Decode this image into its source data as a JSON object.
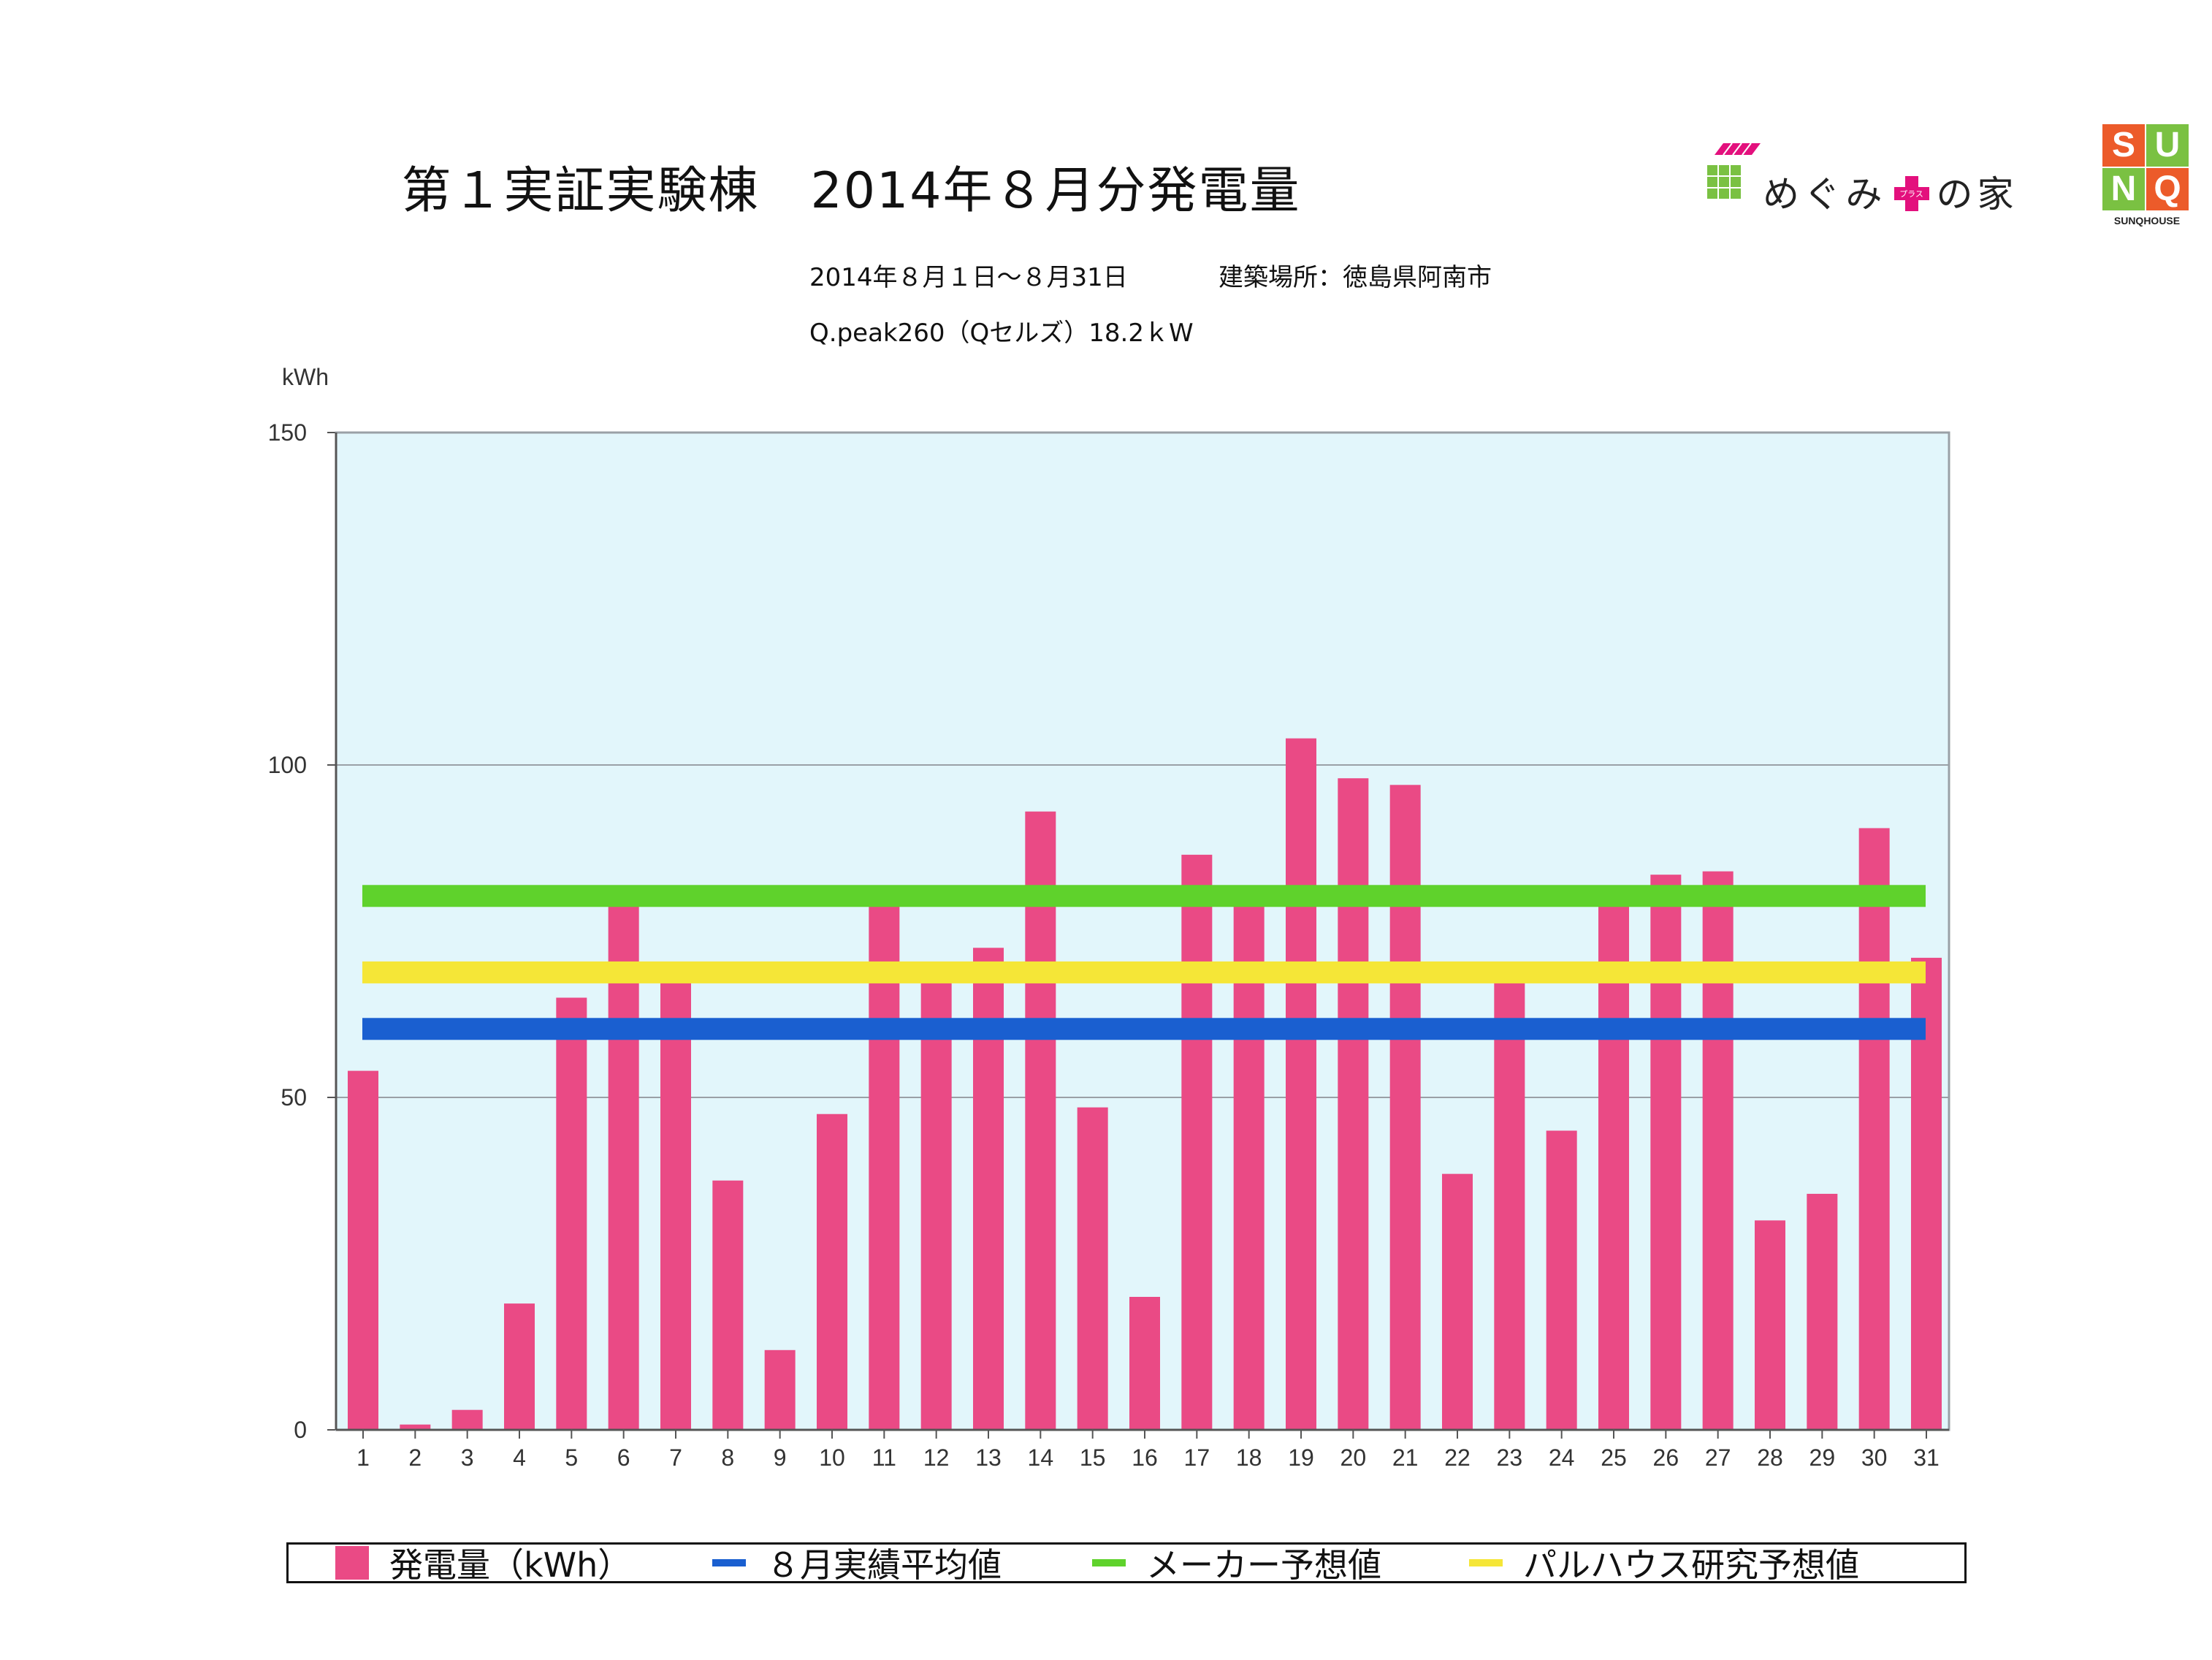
{
  "title": "第１実証実験棟　2014年８月分発電量",
  "period": "2014年８月１日〜８月31日",
  "location": "建築場所：徳島県阿南市",
  "system": "Q.peak260（Qセルズ）18.2ｋW",
  "logos": {
    "megumi": "めぐみ",
    "megumi_plus": "プラス",
    "megumi_suffix": "の家",
    "sunq_letters": [
      "S",
      "U",
      "N",
      "Q"
    ],
    "sunq_caption": "SUNQHOUSE"
  },
  "colors": {
    "bar": "#ea4a85",
    "plot_bg": "#e2f6fb",
    "avg": "#1a5fd0",
    "maker": "#5fd22c",
    "palhouse": "#f5e637"
  },
  "chart_data": {
    "type": "bar",
    "ylabel": "kWh",
    "ylim": [
      0,
      150
    ],
    "yticks": [
      0,
      50,
      100,
      150
    ],
    "grid": true,
    "categories": [
      "1",
      "2",
      "3",
      "4",
      "5",
      "6",
      "7",
      "8",
      "9",
      "10",
      "11",
      "12",
      "13",
      "14",
      "15",
      "16",
      "17",
      "18",
      "19",
      "20",
      "21",
      "22",
      "23",
      "24",
      "25",
      "26",
      "27",
      "28",
      "29",
      "30",
      "31"
    ],
    "series": [
      {
        "name": "発電量（kWh）",
        "values": [
          54,
          0.8,
          3,
          19,
          65,
          80,
          68,
          37.5,
          12,
          47.5,
          80,
          68,
          72.5,
          93,
          48.5,
          20,
          86.5,
          80,
          104,
          98,
          97,
          38.5,
          68,
          45,
          80,
          83.5,
          84,
          31.5,
          35.5,
          90.5,
          71
        ]
      }
    ],
    "lines": [
      {
        "name": "８月実績平均値",
        "value": 60.3,
        "color": "#1a5fd0"
      },
      {
        "name": "メーカー予想値",
        "value": 80.3,
        "color": "#5fd22c"
      },
      {
        "name": "パルハウス研究予想値",
        "value": 68.8,
        "color": "#f5e637"
      }
    ],
    "legend_position": "bottom"
  }
}
